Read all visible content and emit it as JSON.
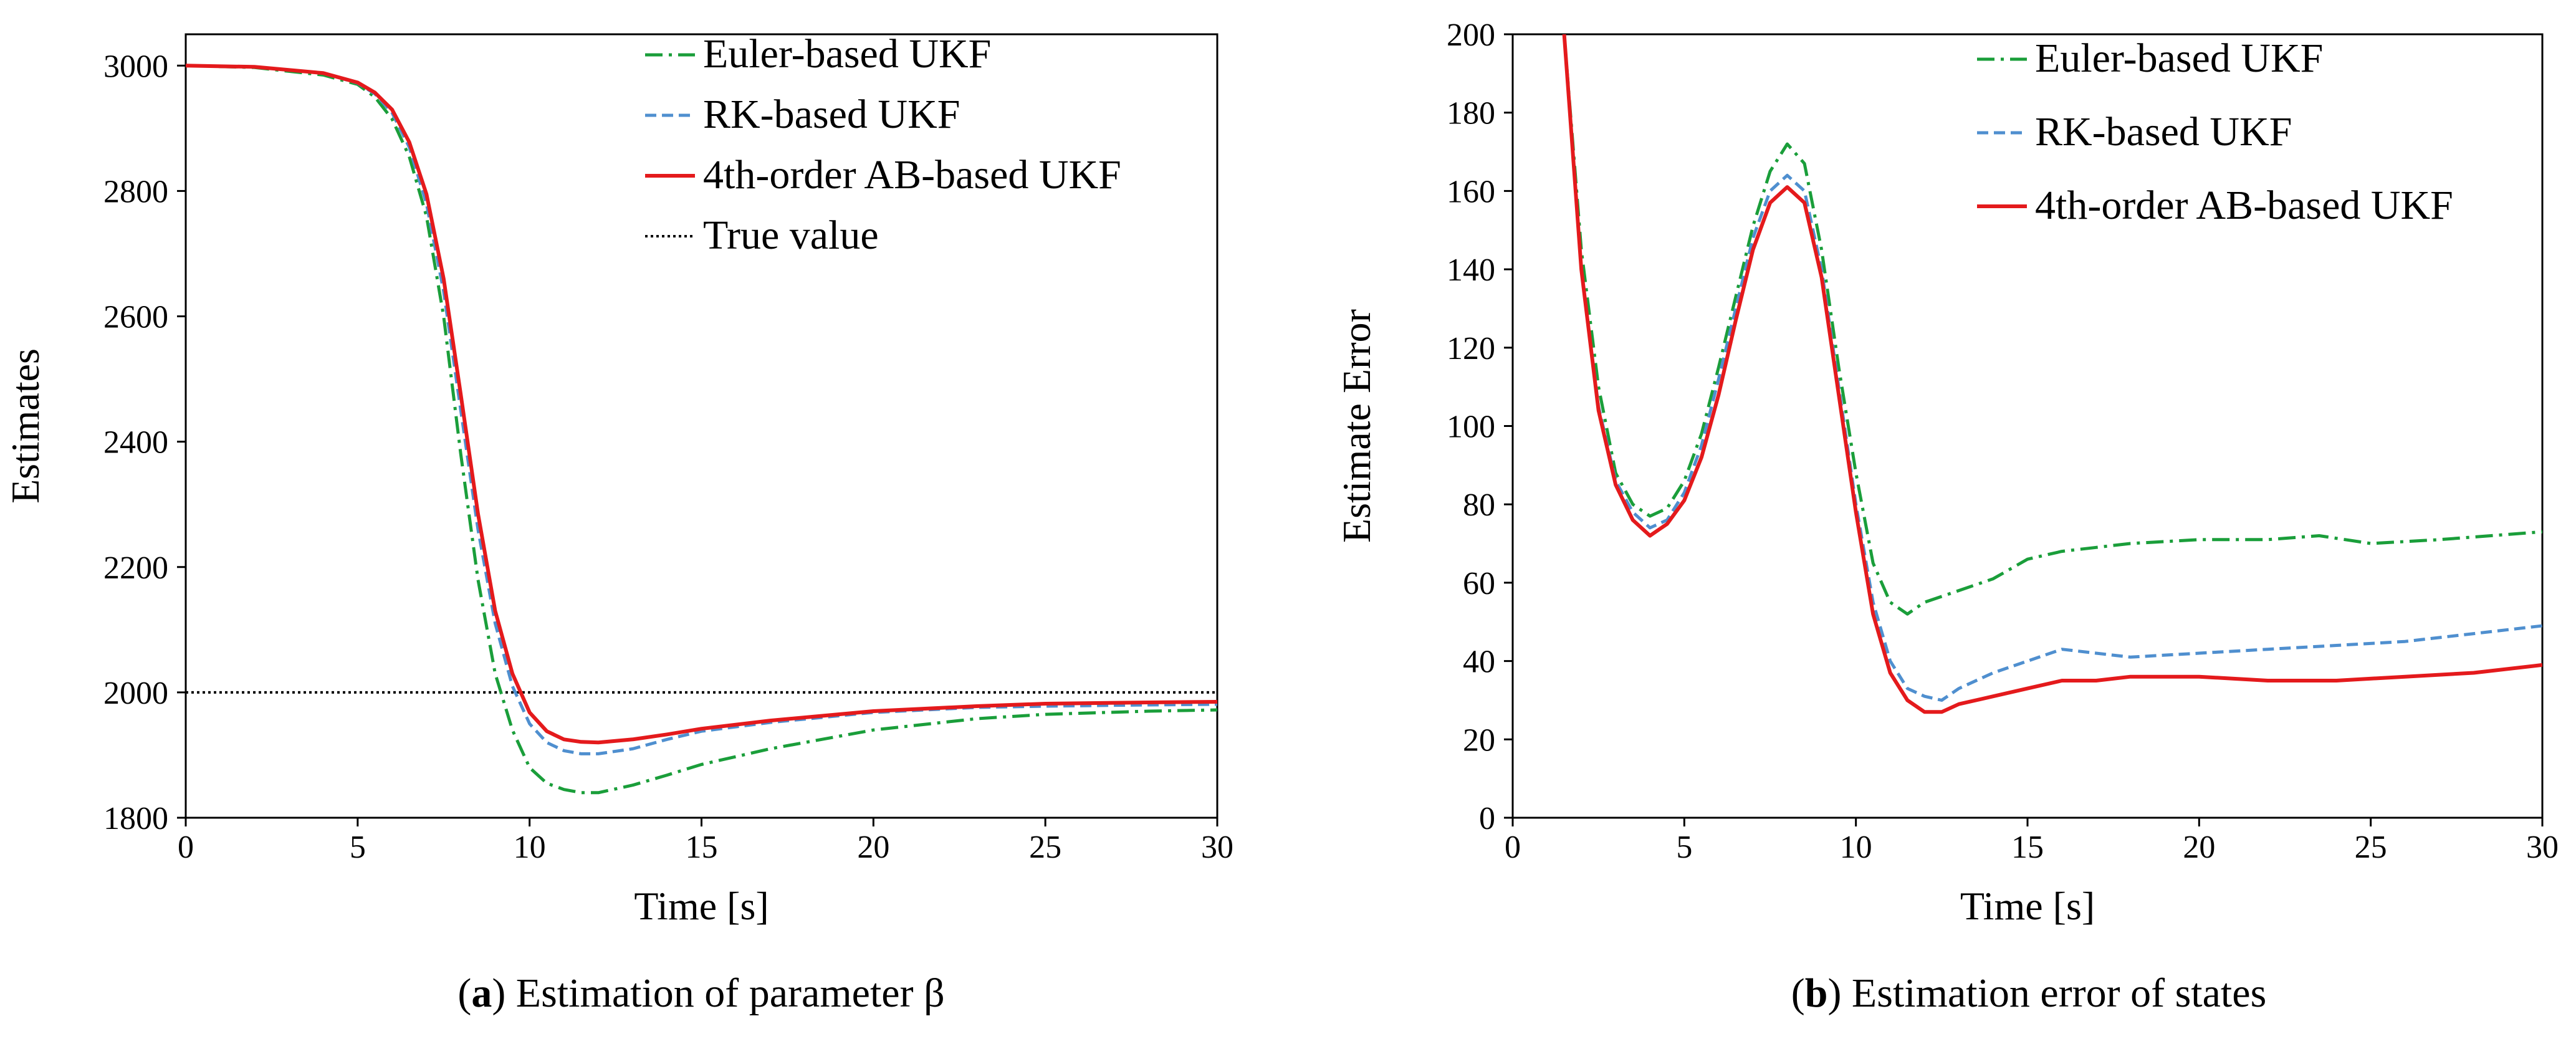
{
  "chart_data": [
    {
      "type": "line",
      "title": "",
      "caption": {
        "prefix": "(",
        "letter": "a",
        "text": ") Estimation of parameter β"
      },
      "xlabel": "Time [s]",
      "ylabel": "Estimates",
      "xlim": [
        0,
        30
      ],
      "ylim": [
        1800,
        3050
      ],
      "xticks": [
        0,
        5,
        10,
        15,
        20,
        25,
        30
      ],
      "yticks": [
        1800,
        2000,
        2200,
        2400,
        2600,
        2800,
        3000
      ],
      "grid": false,
      "legend": "top-right",
      "series": [
        {
          "name": "Euler-based UKF",
          "color": "#1a9e3a",
          "style": "dashdot",
          "x": [
            0,
            2,
            4,
            5,
            5.5,
            6,
            6.5,
            7,
            7.5,
            8,
            8.5,
            9,
            9.5,
            10,
            10.5,
            11,
            11.5,
            12,
            13,
            14,
            15,
            17,
            20,
            23,
            25,
            28,
            30
          ],
          "y": [
            3000,
            2997,
            2985,
            2970,
            2950,
            2915,
            2855,
            2760,
            2600,
            2380,
            2180,
            2030,
            1940,
            1880,
            1855,
            1845,
            1840,
            1840,
            1852,
            1868,
            1885,
            1910,
            1940,
            1958,
            1965,
            1970,
            1972
          ]
        },
        {
          "name": "RK-based UKF",
          "color": "#4f8fcf",
          "style": "dashed",
          "x": [
            0,
            2,
            4,
            5,
            5.5,
            6,
            6.5,
            7,
            7.5,
            8,
            8.5,
            9,
            9.5,
            10,
            10.5,
            11,
            11.5,
            12,
            13,
            14,
            15,
            17,
            20,
            23,
            25,
            28,
            30
          ],
          "y": [
            3000,
            2998,
            2988,
            2972,
            2955,
            2925,
            2870,
            2780,
            2640,
            2450,
            2260,
            2110,
            2010,
            1950,
            1920,
            1907,
            1902,
            1902,
            1910,
            1925,
            1938,
            1952,
            1968,
            1976,
            1978,
            1980,
            1981
          ]
        },
        {
          "name": "4th-order AB-based UKF",
          "color": "#e41a1c",
          "style": "solid",
          "x": [
            0,
            2,
            4,
            5,
            5.5,
            6,
            6.5,
            7,
            7.5,
            8,
            8.5,
            9,
            9.5,
            10,
            10.5,
            11,
            11.5,
            12,
            13,
            14,
            15,
            17,
            20,
            23,
            25,
            28,
            30
          ],
          "y": [
            3000,
            2998,
            2988,
            2973,
            2957,
            2930,
            2878,
            2795,
            2660,
            2475,
            2285,
            2130,
            2030,
            1968,
            1938,
            1925,
            1921,
            1920,
            1925,
            1933,
            1942,
            1955,
            1970,
            1978,
            1982,
            1984,
            1985
          ]
        },
        {
          "name": "True value",
          "color": "#000000",
          "style": "dotted",
          "x": [
            0,
            30
          ],
          "y": [
            2000,
            2000
          ]
        }
      ]
    },
    {
      "type": "line",
      "title": "",
      "caption": {
        "prefix": "(",
        "letter": "b",
        "text": ") Estimation error of states"
      },
      "xlabel": "Time [s]",
      "ylabel": "Estimate Error",
      "xlim": [
        0,
        30
      ],
      "ylim": [
        0,
        200
      ],
      "xticks": [
        0,
        5,
        10,
        15,
        20,
        25,
        30
      ],
      "yticks": [
        0,
        20,
        40,
        60,
        80,
        100,
        120,
        140,
        160,
        180,
        200
      ],
      "grid": false,
      "legend": "top-right",
      "series": [
        {
          "name": "Euler-based UKF",
          "color": "#1a9e3a",
          "style": "dashdot",
          "x": [
            1.5,
            2,
            2.5,
            3,
            3.5,
            4,
            4.5,
            5,
            5.5,
            6,
            6.5,
            7,
            7.5,
            8,
            8.5,
            9,
            9.5,
            10,
            10.5,
            11,
            11.5,
            12,
            13,
            14,
            15,
            16,
            17,
            18,
            20,
            22,
            23.5,
            25,
            27,
            28.5,
            30
          ],
          "y": [
            200,
            145,
            110,
            88,
            80,
            77,
            79,
            86,
            98,
            115,
            133,
            151,
            165,
            172,
            167,
            145,
            115,
            88,
            65,
            55,
            52,
            55,
            58,
            61,
            66,
            68,
            69,
            70,
            71,
            71,
            72,
            70,
            71,
            72,
            73
          ]
        },
        {
          "name": "RK-based UKF",
          "color": "#4f8fcf",
          "style": "dashed",
          "x": [
            1.5,
            2,
            2.5,
            3,
            3.5,
            4,
            4.5,
            5,
            5.5,
            6,
            6.5,
            7,
            7.5,
            8,
            8.5,
            9,
            9.5,
            10,
            10.5,
            11,
            11.5,
            12,
            12.5,
            13,
            14,
            15,
            16,
            17,
            18,
            20,
            22,
            24,
            26,
            28,
            30
          ],
          "y": [
            200,
            140,
            105,
            86,
            78,
            74,
            76,
            83,
            95,
            112,
            130,
            148,
            160,
            164,
            160,
            140,
            110,
            80,
            55,
            40,
            33,
            31,
            30,
            33,
            37,
            40,
            43,
            42,
            41,
            42,
            43,
            44,
            45,
            47,
            49
          ]
        },
        {
          "name": "4th-order AB-based UKF",
          "color": "#e41a1c",
          "style": "solid",
          "x": [
            1.5,
            2,
            2.5,
            3,
            3.5,
            4,
            4.5,
            5,
            5.5,
            6,
            6.5,
            7,
            7.5,
            8,
            8.5,
            9,
            9.5,
            10,
            10.5,
            11,
            11.5,
            12,
            12.5,
            13,
            14,
            15,
            16,
            17,
            18,
            20,
            22,
            24,
            26,
            28,
            30
          ],
          "y": [
            200,
            140,
            104,
            85,
            76,
            72,
            75,
            81,
            92,
            108,
            127,
            145,
            157,
            161,
            157,
            138,
            108,
            78,
            52,
            37,
            30,
            27,
            27,
            29,
            31,
            33,
            35,
            35,
            36,
            36,
            35,
            35,
            36,
            37,
            39
          ]
        }
      ]
    }
  ]
}
